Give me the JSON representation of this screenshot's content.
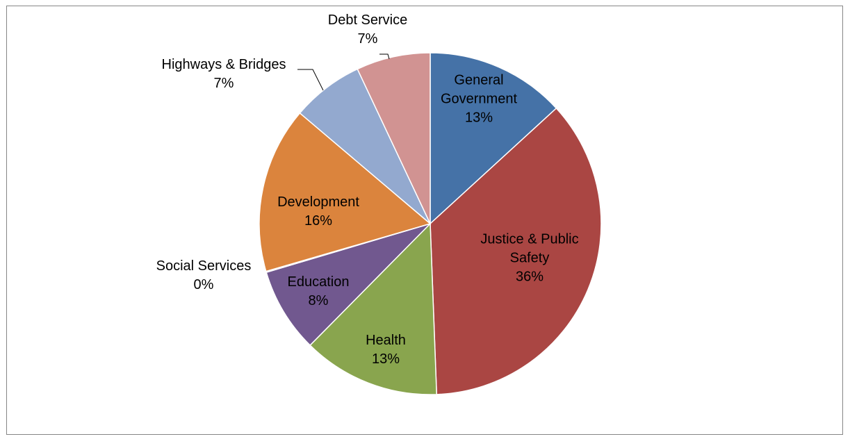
{
  "chart_data": {
    "type": "pie",
    "title": "",
    "slices": [
      {
        "name": "General Government",
        "label_lines": [
          "General",
          "Government"
        ],
        "pct_label": "13%",
        "value": 13.2,
        "color": "#4572A7"
      },
      {
        "name": "Justice & Public Safety",
        "label_lines": [
          "Justice & Public",
          "Safety"
        ],
        "pct_label": "36%",
        "value": 36.2,
        "color": "#AA4643"
      },
      {
        "name": "Health",
        "label_lines": [
          "Health"
        ],
        "pct_label": "13%",
        "value": 13.0,
        "color": "#89A54E"
      },
      {
        "name": "Education",
        "label_lines": [
          "Education"
        ],
        "pct_label": "8%",
        "value": 8.0,
        "color": "#71588F"
      },
      {
        "name": "Social Services",
        "label_lines": [
          "Social Services"
        ],
        "pct_label": "0%",
        "value": 0.1,
        "color": "#4198AF"
      },
      {
        "name": "Development",
        "label_lines": [
          "Development"
        ],
        "pct_label": "16%",
        "value": 15.7,
        "color": "#DB843D"
      },
      {
        "name": "Highways & Bridges",
        "label_lines": [
          "Highways & Bridges"
        ],
        "pct_label": "7%",
        "value": 6.8,
        "color": "#93A9CF"
      },
      {
        "name": "Debt Service",
        "label_lines": [
          "Debt Service"
        ],
        "pct_label": "7%",
        "value": 7.0,
        "color": "#D19392"
      }
    ]
  }
}
